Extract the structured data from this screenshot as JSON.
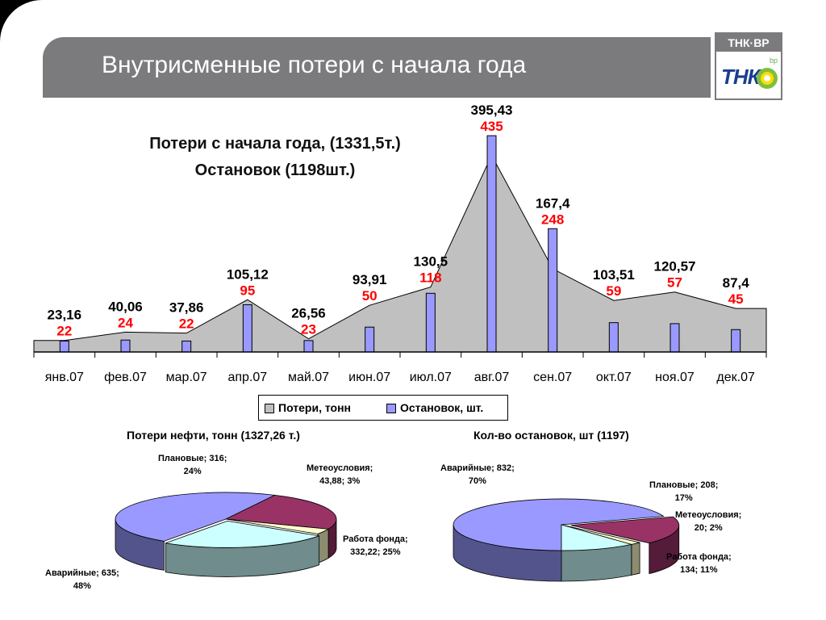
{
  "header": {
    "title": "Внутрисменные потери с начала года",
    "logo_text": "ТНК·ВР",
    "logo_tnk": "ТНК",
    "logo_bp": "bp"
  },
  "main_chart_heading": {
    "line1": "Потери с начала года, (1331,5т.)",
    "line2": "Остановок (1198шт.)"
  },
  "chart_data": [
    {
      "type": "area+bar",
      "categories": [
        "янв.07",
        "фев.07",
        "мар.07",
        "апр.07",
        "май.07",
        "июн.07",
        "июл.07",
        "авг.07",
        "сен.07",
        "окт.07",
        "ноя.07",
        "дек.07"
      ],
      "series": [
        {
          "name": "Потери, тонн",
          "type": "area",
          "values": [
            23.16,
            40.06,
            37.86,
            105.12,
            26.56,
            93.91,
            130.5,
            395.43,
            167.4,
            103.51,
            120.57,
            87.4
          ],
          "labels": [
            "23,16",
            "40,06",
            "37,86",
            "105,12",
            "26,56",
            "93,91",
            "130,5",
            "395,43",
            "167,4",
            "103,51",
            "120,57",
            "87,4"
          ],
          "color": "#c0c0c0"
        },
        {
          "name": "Остановок, шт.",
          "type": "bar",
          "values": [
            22,
            24,
            22,
            95,
            23,
            50,
            118,
            435,
            248,
            59,
            57,
            45
          ],
          "labels": [
            "22",
            "24",
            "22",
            "95",
            "23",
            "50",
            "118",
            "435",
            "248",
            "59",
            "57",
            "45"
          ],
          "color": "#9999ff",
          "label_color": "#ff0000"
        }
      ],
      "ylim": [
        0,
        440
      ],
      "grid": false,
      "legend_position": "bottom"
    },
    {
      "type": "pie",
      "title": "Потери нефти, тонн (1327,26 т.)",
      "slices": [
        {
          "name": "Аварийные",
          "value": 635,
          "percent": 48,
          "color": "#9999ff",
          "label": [
            "Аварийные; 635;",
            "48%"
          ]
        },
        {
          "name": "Плановые",
          "value": 316,
          "percent": 24,
          "color": "#993366",
          "label": [
            "Плановые; 316;",
            "24%"
          ]
        },
        {
          "name": "Метеоусловия",
          "value": 43.88,
          "percent": 3,
          "color": "#ffffcc",
          "label": [
            "Метеоусловия;",
            "43,88; 3%"
          ]
        },
        {
          "name": "Работа фонда",
          "value": 332.22,
          "percent": 25,
          "color": "#ccffff",
          "label": [
            "Работа фонда;",
            "332,22; 25%"
          ]
        }
      ]
    },
    {
      "type": "pie",
      "title": "Кол-во остановок, шт (1197)",
      "slices": [
        {
          "name": "Аварийные",
          "value": 832,
          "percent": 70,
          "color": "#9999ff",
          "label": [
            "Аварийные; 832;",
            "70%"
          ]
        },
        {
          "name": "Плановые",
          "value": 208,
          "percent": 17,
          "color": "#993366",
          "label": [
            "Плановые; 208;",
            "17%"
          ]
        },
        {
          "name": "Метеоусловия",
          "value": 20,
          "percent": 2,
          "color": "#ffffcc",
          "label": [
            "Метеоусловия;",
            "20; 2%"
          ]
        },
        {
          "name": "Работа фонда",
          "value": 134,
          "percent": 11,
          "color": "#ccffff",
          "label": [
            "Работа фонда;",
            "134; 11%"
          ]
        }
      ]
    }
  ]
}
